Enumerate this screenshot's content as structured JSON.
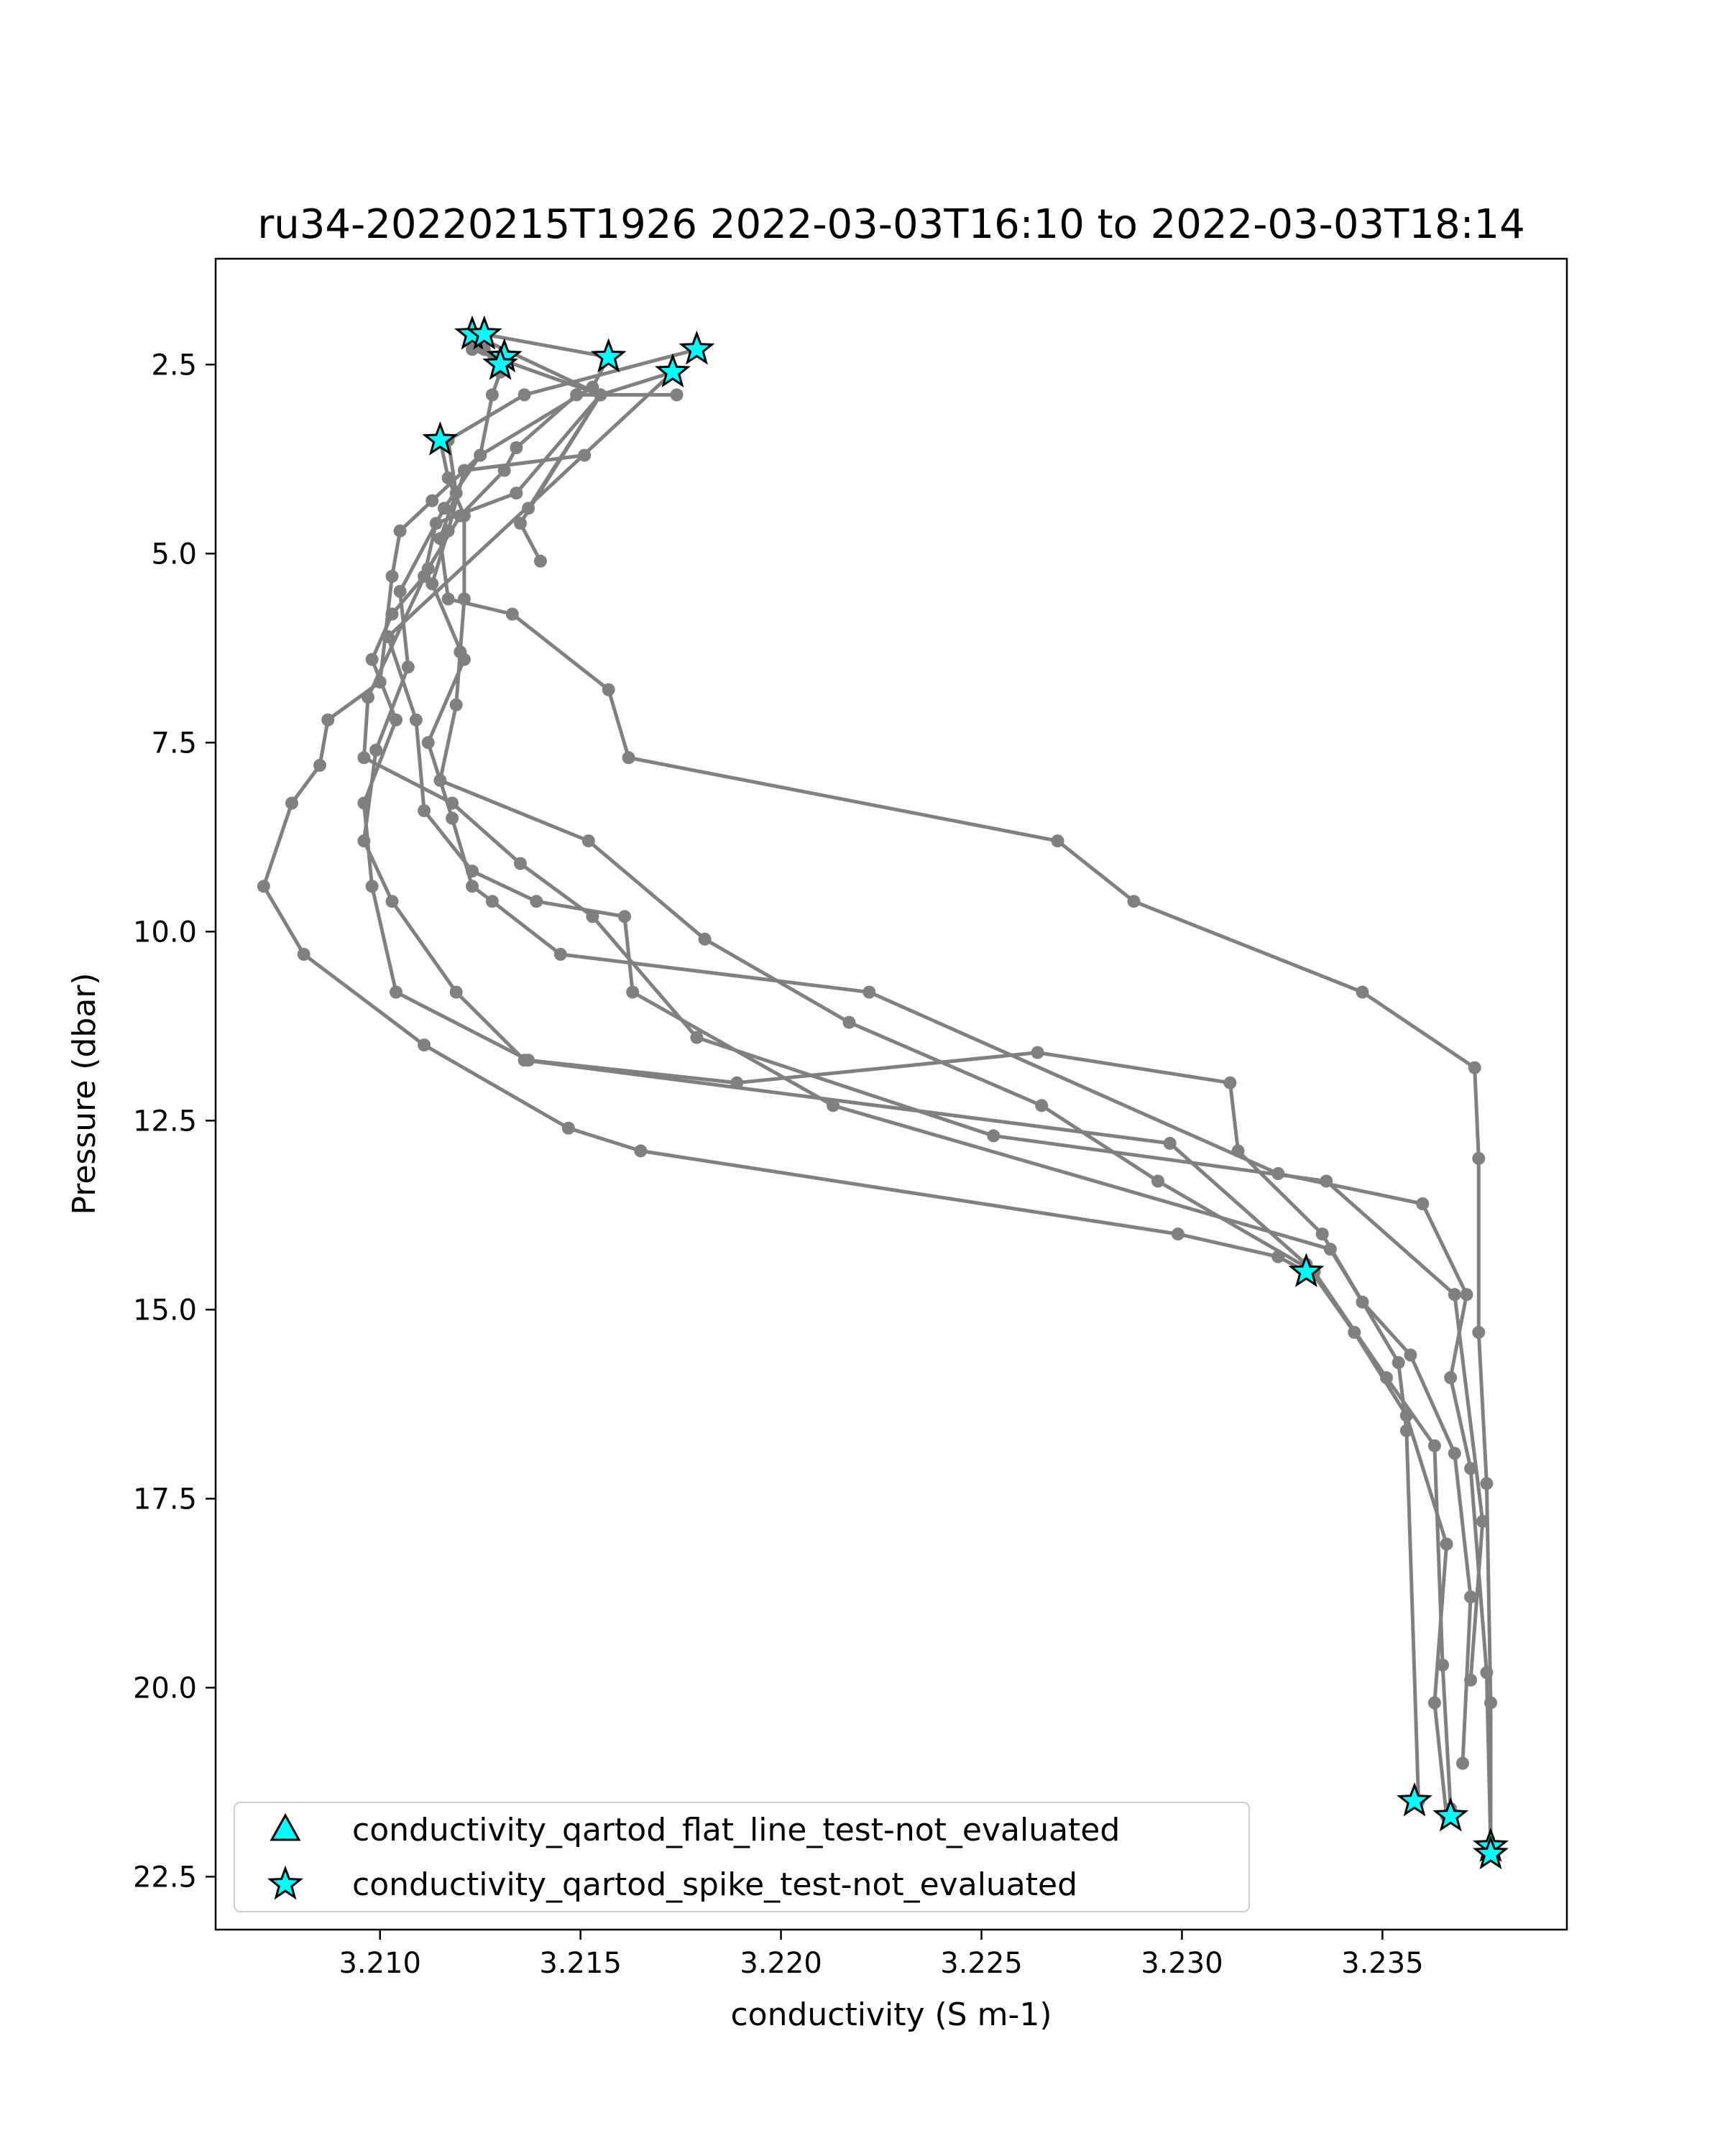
{
  "chart_data": {
    "type": "line",
    "title": "ru34-20220215T1926 2022-03-03T16:10 to 2022-03-03T18:14",
    "xlabel": "conductivity (S m-1)",
    "ylabel": "Pressure (dbar)",
    "xlim": [
      3.2059,
      3.2396
    ],
    "ylim": [
      23.2,
      1.1
    ],
    "y_inverted": true,
    "xticks": [
      3.21,
      3.215,
      3.22,
      3.225,
      3.23,
      3.235
    ],
    "xtick_labels": [
      "3.210",
      "3.215",
      "3.220",
      "3.225",
      "3.230",
      "3.235"
    ],
    "yticks": [
      2.5,
      5.0,
      7.5,
      10.0,
      12.5,
      15.0,
      17.5,
      20.0,
      22.5
    ],
    "ytick_labels": [
      "2.5",
      "5.0",
      "7.5",
      "10.0",
      "12.5",
      "15.0",
      "17.5",
      "20.0",
      "22.5"
    ],
    "grid": false,
    "legend_position": "lower-left",
    "line_color": "#808080",
    "marker_color": "#00ffff",
    "legend": [
      {
        "label": "conductivity_qartod_flat_line_test-not_evaluated",
        "marker": "triangle"
      },
      {
        "label": "conductivity_qartod_spike_test-not_evaluated",
        "marker": "star"
      }
    ],
    "series": [
      {
        "points": [
          [
            3.2137,
            4.4
          ],
          [
            3.2155,
            2.9
          ],
          [
            3.2123,
            2.1
          ]
        ]
      },
      {
        "points": [
          [
            3.2126,
            2.3
          ],
          [
            3.213,
            2.6
          ],
          [
            3.2128,
            2.9
          ],
          [
            3.2125,
            3.7
          ],
          [
            3.2113,
            4.3
          ],
          [
            3.2105,
            4.7
          ],
          [
            3.2103,
            5.3
          ],
          [
            3.21,
            6.7
          ],
          [
            3.2087,
            7.2
          ],
          [
            3.2085,
            7.8
          ],
          [
            3.2078,
            8.3
          ],
          [
            3.2071,
            9.4
          ],
          [
            3.2081,
            10.3
          ],
          [
            3.2111,
            11.5
          ],
          [
            3.2147,
            12.6
          ],
          [
            3.2165,
            12.9
          ],
          [
            3.2299,
            14.0
          ],
          [
            3.2324,
            14.3
          ],
          [
            3.2331,
            14.5
          ]
        ]
      },
      {
        "points": [
          [
            3.2123,
            2.3
          ],
          [
            3.2155,
            2.9
          ],
          [
            3.2134,
            4.2
          ],
          [
            3.2114,
            4.6
          ],
          [
            3.2111,
            5.3
          ],
          [
            3.2103,
            5.8
          ],
          [
            3.2098,
            6.4
          ],
          [
            3.2104,
            7.2
          ],
          [
            3.2096,
            8.3
          ],
          [
            3.2098,
            9.4
          ],
          [
            3.2104,
            10.8
          ],
          [
            3.2137,
            11.7
          ],
          [
            3.2189,
            12.0
          ],
          [
            3.2264,
            11.6
          ],
          [
            3.2312,
            12.0
          ],
          [
            3.2314,
            12.9
          ],
          [
            3.2335,
            14.0
          ],
          [
            3.2354,
            15.7
          ],
          [
            3.2356,
            16.6
          ],
          [
            3.2359,
            21.5
          ]
        ]
      },
      {
        "points": [
          [
            3.2151,
            3.7
          ],
          [
            3.2121,
            3.9
          ],
          [
            3.2117,
            4.7
          ],
          [
            3.2113,
            5.4
          ],
          [
            3.2121,
            6.4
          ],
          [
            3.2112,
            7.5
          ],
          [
            3.2118,
            8.5
          ],
          [
            3.2123,
            9.4
          ],
          [
            3.2128,
            9.6
          ],
          [
            3.2145,
            10.3
          ],
          [
            3.2222,
            10.8
          ],
          [
            3.2324,
            13.2
          ],
          [
            3.236,
            13.6
          ],
          [
            3.2371,
            14.8
          ],
          [
            3.2367,
            15.9
          ],
          [
            3.2372,
            17.1
          ],
          [
            3.2376,
            19.8
          ],
          [
            3.2377,
            22.1
          ]
        ]
      },
      {
        "points": [
          [
            3.2126,
            2.1
          ],
          [
            3.2157,
            2.4
          ],
          [
            3.2153,
            2.8
          ],
          [
            3.2125,
            3.7
          ],
          [
            3.2116,
            4.4
          ],
          [
            3.2105,
            5.5
          ],
          [
            3.2107,
            6.5
          ],
          [
            3.2099,
            7.6
          ],
          [
            3.2096,
            8.8
          ],
          [
            3.2103,
            9.6
          ],
          [
            3.2119,
            10.8
          ],
          [
            3.2136,
            11.7
          ],
          [
            3.2297,
            12.8
          ],
          [
            3.2331,
            14.4
          ],
          [
            3.2343,
            15.3
          ],
          [
            3.2356,
            16.4
          ],
          [
            3.2366,
            18.1
          ],
          [
            3.2363,
            20.2
          ],
          [
            3.2366,
            21.7
          ]
        ]
      },
      {
        "points": [
          [
            3.2179,
            2.3
          ],
          [
            3.2136,
            2.9
          ],
          [
            3.2117,
            3.5
          ],
          [
            3.2119,
            4.2
          ],
          [
            3.2115,
            4.8
          ],
          [
            3.2117,
            5.6
          ],
          [
            3.2133,
            5.8
          ],
          [
            3.2157,
            6.8
          ],
          [
            3.2162,
            7.7
          ],
          [
            3.2269,
            8.8
          ],
          [
            3.2288,
            9.6
          ],
          [
            3.2345,
            10.8
          ],
          [
            3.2373,
            11.8
          ],
          [
            3.2374,
            13.0
          ],
          [
            3.2374,
            15.3
          ],
          [
            3.2376,
            17.3
          ],
          [
            3.2377,
            20.2
          ],
          [
            3.2377,
            22.2
          ]
        ]
      },
      {
        "points": [
          [
            3.214,
            5.1
          ],
          [
            3.2135,
            4.6
          ],
          [
            3.2155,
            2.9
          ],
          [
            3.2173,
            2.6
          ],
          [
            3.2102,
            6.1
          ],
          [
            3.2109,
            7.2
          ],
          [
            3.2111,
            8.4
          ],
          [
            3.2123,
            9.2
          ],
          [
            3.2139,
            9.6
          ],
          [
            3.2161,
            9.8
          ],
          [
            3.2163,
            10.8
          ],
          [
            3.2213,
            12.3
          ],
          [
            3.2337,
            14.2
          ],
          [
            3.2345,
            14.9
          ],
          [
            3.2357,
            15.6
          ],
          [
            3.2368,
            16.9
          ],
          [
            3.2372,
            18.8
          ],
          [
            3.237,
            21.0
          ]
        ]
      },
      {
        "points": [
          [
            3.2174,
            2.9
          ],
          [
            3.2149,
            2.9
          ],
          [
            3.2134,
            3.6
          ],
          [
            3.2131,
            3.9
          ],
          [
            3.212,
            4.5
          ],
          [
            3.2112,
            5.2
          ],
          [
            3.2097,
            6.9
          ],
          [
            3.2096,
            7.7
          ],
          [
            3.2118,
            8.3
          ],
          [
            3.2135,
            9.1
          ],
          [
            3.2153,
            9.8
          ],
          [
            3.2179,
            11.4
          ],
          [
            3.2253,
            12.7
          ],
          [
            3.2336,
            13.3
          ],
          [
            3.2368,
            14.8
          ],
          [
            3.2375,
            17.8
          ],
          [
            3.2372,
            19.9
          ]
        ]
      },
      {
        "points": [
          [
            3.2115,
            3.5
          ],
          [
            3.2117,
            4.0
          ],
          [
            3.2121,
            4.5
          ],
          [
            3.2121,
            5.6
          ],
          [
            3.212,
            6.3
          ],
          [
            3.2119,
            7.0
          ],
          [
            3.2115,
            8.0
          ],
          [
            3.2152,
            8.8
          ],
          [
            3.2181,
            10.1
          ],
          [
            3.2217,
            11.2
          ],
          [
            3.2265,
            12.3
          ],
          [
            3.2294,
            13.3
          ],
          [
            3.2333,
            14.5
          ],
          [
            3.2351,
            15.9
          ],
          [
            3.2363,
            16.8
          ],
          [
            3.2365,
            19.7
          ],
          [
            3.2367,
            21.6
          ]
        ]
      }
    ],
    "star_markers": [
      [
        3.2123,
        2.1
      ],
      [
        3.2126,
        2.1
      ],
      [
        3.2131,
        2.4
      ],
      [
        3.213,
        2.5
      ],
      [
        3.2157,
        2.4
      ],
      [
        3.2179,
        2.3
      ],
      [
        3.2173,
        2.6
      ],
      [
        3.2115,
        3.5
      ],
      [
        3.2331,
        14.5
      ],
      [
        3.2358,
        21.5
      ],
      [
        3.2367,
        21.7
      ],
      [
        3.2377,
        22.1
      ],
      [
        3.2377,
        22.2
      ]
    ]
  }
}
